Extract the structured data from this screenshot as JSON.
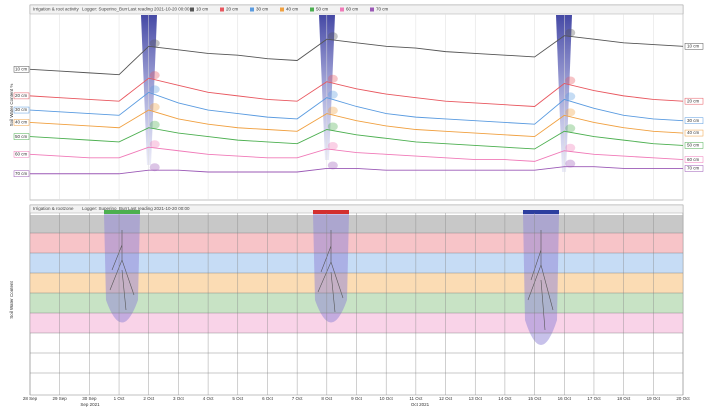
{
  "chart_data": {
    "type": "line",
    "title": "Irrigation & root activity",
    "logger": "Logger: Superino_Burr",
    "last_reading": "Last reading 2021-10-20 00:00",
    "y_label": "Soil Water Content %",
    "bottom_title": "Irrigation & rootzone",
    "bottom_y_label": "Soil Water Content",
    "months": [
      "Sep 2021",
      "Oct 2021"
    ],
    "x": [
      "28 Sep",
      "29 Sep",
      "30 Sep",
      "1 Oct",
      "2 Oct",
      "3 Oct",
      "4 Oct",
      "5 Oct",
      "6 Oct",
      "7 Oct",
      "8 Oct",
      "9 Oct",
      "10 Oct",
      "11 Oct",
      "12 Oct",
      "13 Oct",
      "14 Oct",
      "15 Oct",
      "16 Oct",
      "17 Oct",
      "18 Oct",
      "19 Oct",
      "20 Oct"
    ],
    "ylim": [
      0,
      100
    ],
    "series": [
      {
        "name": "10 cm",
        "color": "#555555",
        "values": [
          71,
          70,
          69,
          68,
          84,
          82,
          80,
          79,
          77,
          76,
          88,
          86,
          84,
          83,
          81,
          80,
          79,
          78,
          90,
          88,
          86,
          85,
          84
        ]
      },
      {
        "name": "20 cm",
        "color": "#e8575f",
        "values": [
          56,
          55,
          54,
          53,
          66,
          62,
          58,
          56,
          54,
          53,
          64,
          60,
          57,
          55,
          53,
          52,
          51,
          50,
          63,
          59,
          56,
          54,
          53
        ]
      },
      {
        "name": "30 cm",
        "color": "#5a9be0",
        "values": [
          48,
          47,
          46,
          45,
          58,
          52,
          48,
          46,
          44,
          43,
          55,
          50,
          46,
          44,
          43,
          42,
          41,
          40,
          54,
          49,
          45,
          43,
          42
        ]
      },
      {
        "name": "40 cm",
        "color": "#f0a040",
        "values": [
          41,
          40,
          39,
          38,
          48,
          43,
          40,
          38,
          37,
          36,
          46,
          42,
          39,
          37,
          36,
          35,
          34,
          33,
          45,
          41,
          38,
          36,
          35
        ]
      },
      {
        "name": "50 cm",
        "color": "#4caf50",
        "values": [
          33,
          32,
          31,
          30,
          38,
          35,
          33,
          31,
          30,
          29,
          37,
          34,
          32,
          30,
          29,
          28,
          27,
          26,
          36,
          33,
          31,
          29,
          28
        ]
      },
      {
        "name": "60 cm",
        "color": "#f07ab8",
        "values": [
          23,
          22,
          21,
          21,
          27,
          25,
          23,
          22,
          21,
          21,
          26,
          24,
          23,
          22,
          21,
          20,
          20,
          19,
          25,
          23,
          22,
          21,
          20
        ]
      },
      {
        "name": "70 cm",
        "color": "#9b59b6",
        "values": [
          12,
          12,
          12,
          12,
          14,
          14,
          13,
          13,
          13,
          13,
          15,
          15,
          14,
          14,
          14,
          14,
          14,
          14,
          16,
          16,
          15,
          15,
          15
        ]
      }
    ]
  }
}
